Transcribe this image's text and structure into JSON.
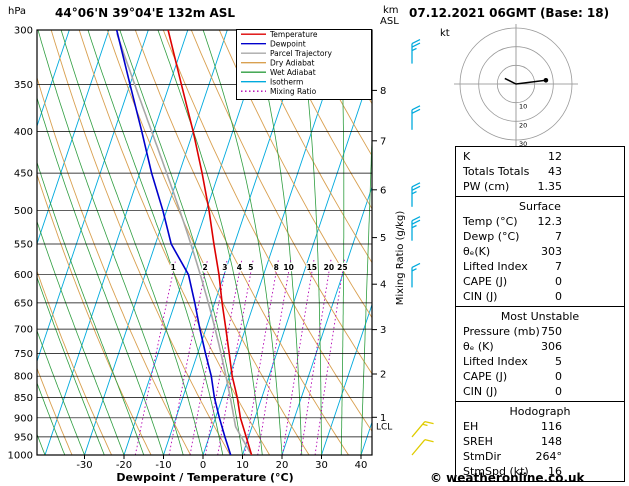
{
  "date_title": "07.12.2021 06GMT (Base: 18)",
  "copyright": "© weatheronline.co.uk",
  "colors": {
    "temperature": "#dd0000",
    "dewpoint": "#0000cc",
    "parcel": "#a8a8a8",
    "dry_adiabat": "#d9a050",
    "wet_adiabat": "#2f9e40",
    "isotherm": "#00aadd",
    "mixing_ratio": "#b300b3",
    "wind_barb_upper": "#00aadd",
    "wind_barb_surface": "#e0cc00"
  },
  "axes": {
    "pressure_unit": "hPa",
    "pressure_ticks": [
      300,
      350,
      400,
      450,
      500,
      550,
      600,
      650,
      700,
      750,
      800,
      850,
      900,
      950,
      1000
    ],
    "temp_ticks_c": [
      -30,
      -20,
      -10,
      0,
      10,
      20,
      30,
      40
    ],
    "km_label_line1": "km",
    "km_label_line2": "ASL",
    "km_ticks": [
      1,
      2,
      3,
      4,
      5,
      6,
      7,
      8
    ],
    "right_axis_label": "Mixing Ratio (g/kg)",
    "lcl_label": "LCL"
  },
  "legend": [
    {
      "label": "Temperature",
      "color": "#dd0000"
    },
    {
      "label": "Dewpoint",
      "color": "#0000cc"
    },
    {
      "label": "Parcel Trajectory",
      "color": "#a8a8a8"
    },
    {
      "label": "Dry Adiabat",
      "color": "#d9a050"
    },
    {
      "label": "Wet Adiabat",
      "color": "#2f9e40"
    },
    {
      "label": "Isotherm",
      "color": "#00aadd"
    },
    {
      "label": "Mixing Ratio",
      "color": "#b300b3",
      "dash": "1.5,2.5"
    }
  ],
  "chart_data": {
    "type": "line",
    "title": "44°06'N 39°04'E 132m ASL",
    "xlabel": "Dewpoint / Temperature (°C)",
    "ylabel": "hPa",
    "x_range_c": [
      -35,
      40
    ],
    "pressure_range_hpa": [
      300,
      1000
    ],
    "series": [
      {
        "name": "Temperature",
        "points_p_t": [
          [
            1000,
            12.3
          ],
          [
            950,
            9.4
          ],
          [
            900,
            6.3
          ],
          [
            850,
            3.8
          ],
          [
            800,
            0.7
          ],
          [
            750,
            -2
          ],
          [
            700,
            -4.9
          ],
          [
            650,
            -8.1
          ],
          [
            600,
            -11.3
          ],
          [
            550,
            -15.2
          ],
          [
            500,
            -19.3
          ],
          [
            450,
            -24.2
          ],
          [
            400,
            -30
          ],
          [
            350,
            -37
          ],
          [
            300,
            -45
          ]
        ]
      },
      {
        "name": "Dewpoint",
        "points_p_t": [
          [
            1000,
            7
          ],
          [
            950,
            4
          ],
          [
            900,
            1
          ],
          [
            850,
            -2
          ],
          [
            800,
            -4.6
          ],
          [
            750,
            -8
          ],
          [
            700,
            -11.5
          ],
          [
            650,
            -15
          ],
          [
            600,
            -19
          ],
          [
            550,
            -26
          ],
          [
            500,
            -31
          ],
          [
            450,
            -37
          ],
          [
            400,
            -43
          ],
          [
            350,
            -50
          ],
          [
            300,
            -58
          ]
        ]
      },
      {
        "name": "Parcel Trajectory",
        "surface_temp_c": 12.3,
        "surface_dewp_c": 7
      }
    ],
    "mixing_ratio_lines_gkg": [
      1,
      2,
      3,
      4,
      5,
      8,
      10,
      15,
      20,
      25
    ],
    "isotherm_step_c": 10,
    "dry_adiabat_step_k": 10,
    "wet_adiabat_step_c": 5
  },
  "hodograph": {
    "unit_label": "kt",
    "rings_kt": [
      10,
      20,
      30
    ],
    "trace_kt": [
      [
        -6,
        -3
      ],
      [
        0,
        0
      ],
      [
        16,
        -2
      ]
    ],
    "storm_motion_kt": [
      16,
      -2
    ]
  },
  "wind_barbs": [
    {
      "pressure_hpa": 330,
      "speed_kt": 25,
      "color": "#00aadd",
      "angle_deg": 0
    },
    {
      "pressure_hpa": 398,
      "speed_kt": 20,
      "color": "#00aadd",
      "angle_deg": 0
    },
    {
      "pressure_hpa": 495,
      "speed_kt": 25,
      "color": "#00aadd",
      "angle_deg": 0
    },
    {
      "pressure_hpa": 545,
      "speed_kt": 25,
      "color": "#00aadd",
      "angle_deg": 0
    },
    {
      "pressure_hpa": 622,
      "speed_kt": 15,
      "color": "#00aadd",
      "angle_deg": 0
    },
    {
      "pressure_hpa": 950,
      "speed_kt": 15,
      "color": "#e0cc00",
      "angle_deg": 40
    },
    {
      "pressure_hpa": 1000,
      "speed_kt": 10,
      "color": "#e0cc00",
      "angle_deg": 40
    }
  ],
  "panels": [
    {
      "rows": [
        [
          "K",
          "12"
        ],
        [
          "Totals Totals",
          "43"
        ],
        [
          "PW (cm)",
          "1.35"
        ]
      ]
    },
    {
      "header": "Surface",
      "rows": [
        [
          "Temp (°C)",
          "12.3"
        ],
        [
          "Dewp (°C)",
          "7"
        ],
        [
          "θₑ(K)",
          "303"
        ],
        [
          "Lifted Index",
          "7"
        ],
        [
          "CAPE (J)",
          "0"
        ],
        [
          "CIN (J)",
          "0"
        ]
      ]
    },
    {
      "header": "Most Unstable",
      "rows": [
        [
          "Pressure (mb)",
          "750"
        ],
        [
          "θₑ (K)",
          "306"
        ],
        [
          "Lifted Index",
          "5"
        ],
        [
          "CAPE (J)",
          "0"
        ],
        [
          "CIN (J)",
          "0"
        ]
      ]
    },
    {
      "header": "Hodograph",
      "rows": [
        [
          "EH",
          "116"
        ],
        [
          "SREH",
          "148"
        ],
        [
          "StmDir",
          "264°"
        ],
        [
          "StmSpd (kt)",
          "16"
        ]
      ]
    }
  ]
}
